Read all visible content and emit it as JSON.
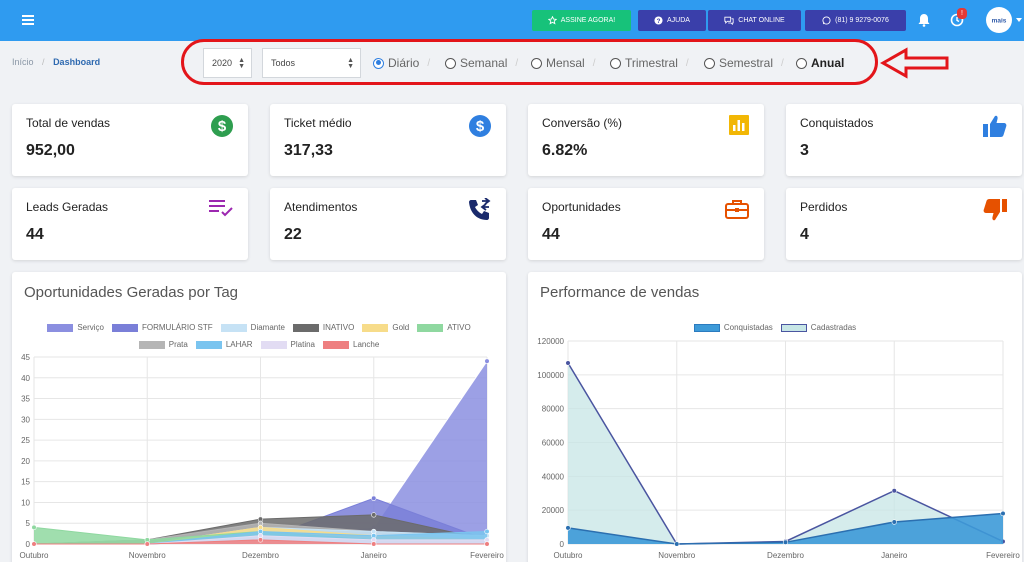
{
  "topbar": {
    "subscribe_label": "ASSINE AGORA!",
    "help_label": "AJUDA",
    "chat_label": "CHAT ONLINE",
    "whatsapp_label": "(81) 9 9279-0076",
    "notification_count": "!",
    "avatar_text": "mais",
    "colors": {
      "bar": "#2f9bf0",
      "green": "#17c27a",
      "navy": "#3a3faa"
    }
  },
  "breadcrumb": {
    "home": "Início",
    "sep": "/",
    "current": "Dashboard"
  },
  "filters": {
    "year": "2020",
    "tag": "Todos",
    "periods": [
      {
        "label": "Diário",
        "selected": true,
        "bold": false
      },
      {
        "label": "Semanal",
        "selected": false,
        "bold": false
      },
      {
        "label": "Mensal",
        "selected": false,
        "bold": false
      },
      {
        "label": "Trimestral",
        "selected": false,
        "bold": false
      },
      {
        "label": "Semestral",
        "selected": false,
        "bold": false
      },
      {
        "label": "Anual",
        "selected": false,
        "bold": true
      }
    ],
    "period_sep": "/"
  },
  "cards": [
    {
      "label": "Total de vendas",
      "value": "952,00",
      "icon": "dollar-icon",
      "color": "#2e9e4f"
    },
    {
      "label": "Ticket médio",
      "value": "317,33",
      "icon": "dollar-icon",
      "color": "#2f7fe0"
    },
    {
      "label": "Conversão (%)",
      "value": "6.82%",
      "icon": "bar-chart-icon",
      "color": "#f2b705"
    },
    {
      "label": "Conquistados",
      "value": "3",
      "icon": "thumbs-up-icon",
      "color": "#2f7fe0"
    },
    {
      "label": "Leads Geradas",
      "value": "44",
      "icon": "checklist-icon",
      "color": "#9c27b0"
    },
    {
      "label": "Atendimentos",
      "value": "22",
      "icon": "phone-transfer-icon",
      "color": "#1a2a6c"
    },
    {
      "label": "Oportunidades",
      "value": "44",
      "icon": "briefcase-icon",
      "color": "#e65100"
    },
    {
      "label": "Perdidos",
      "value": "4",
      "icon": "thumbs-down-icon",
      "color": "#e65100"
    }
  ],
  "chart_data": [
    {
      "type": "area",
      "title": "Oportunidades Geradas por Tag",
      "categories": [
        "Outubro",
        "Novembro",
        "Dezembro",
        "Janeiro",
        "Fevereiro"
      ],
      "ylim": [
        0,
        45
      ],
      "yticks": [
        "0",
        "5",
        "10",
        "15",
        "20",
        "25",
        "30",
        "35",
        "40",
        "45"
      ],
      "grid": true,
      "legend_position": "top",
      "series": [
        {
          "name": "Serviço",
          "color": "#8b8fe0",
          "values": [
            0,
            0,
            2,
            4,
            44
          ]
        },
        {
          "name": "FORMULÁRIO STF",
          "color": "#7a7fd8",
          "values": [
            0,
            0,
            1,
            11,
            1
          ]
        },
        {
          "name": "Diamante",
          "color": "#c6e2f5",
          "values": [
            0,
            0,
            4,
            3,
            2
          ]
        },
        {
          "name": "INATIVO",
          "color": "#6b6b6b",
          "values": [
            0,
            1,
            6,
            7,
            1
          ]
        },
        {
          "name": "Gold",
          "color": "#f7dc8a",
          "values": [
            0,
            0,
            4,
            2,
            1
          ]
        },
        {
          "name": "ATIVO",
          "color": "#8fd8a0",
          "values": [
            4,
            1,
            3,
            1,
            0
          ]
        },
        {
          "name": "Prata",
          "color": "#b5b5b5",
          "values": [
            0,
            1,
            5,
            3,
            2
          ]
        },
        {
          "name": "LAHAR",
          "color": "#7ac4ef",
          "values": [
            0,
            0,
            3,
            2,
            3
          ]
        },
        {
          "name": "Platina",
          "color": "#e2dcf3",
          "values": [
            0,
            0,
            2,
            1,
            1
          ]
        },
        {
          "name": "Lanche",
          "color": "#ee7f80",
          "values": [
            0,
            0,
            1,
            0,
            0
          ]
        }
      ]
    },
    {
      "type": "area",
      "title": "Performance de vendas",
      "categories": [
        "Outubro",
        "Novembro",
        "Dezembro",
        "Janeiro",
        "Fevereiro"
      ],
      "ylim": [
        0,
        120000
      ],
      "yticks": [
        "0",
        "20000",
        "40000",
        "60000",
        "80000",
        "100000",
        "120000"
      ],
      "grid": true,
      "legend_position": "top",
      "series": [
        {
          "name": "Conquistadas",
          "color": "#3d9ad8",
          "values": [
            9500,
            0,
            1000,
            13000,
            18000
          ]
        },
        {
          "name": "Cadastradas",
          "color": "#c7e6e6",
          "values": [
            107000,
            0,
            1500,
            31500,
            1500
          ]
        }
      ]
    }
  ]
}
